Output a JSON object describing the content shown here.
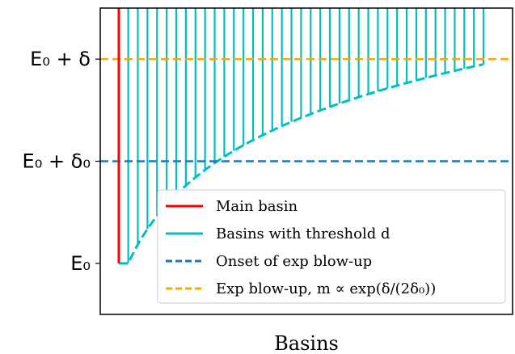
{
  "chart_data": {
    "type": "line",
    "title": "",
    "xlabel": "Basins",
    "ylabel": "",
    "ylim": [
      -0.5,
      2.5
    ],
    "grid": false,
    "legend_placement": "lower-right",
    "yticks": [
      {
        "value": 0,
        "label": "E₀"
      },
      {
        "value": 1,
        "label": "E₀ + δ₀"
      },
      {
        "value": 2,
        "label": "E₀ + δ"
      }
    ],
    "colors": {
      "main_basin": "#ff0000",
      "threshold_basins": "#00bfbf",
      "onset": "#1f77b4",
      "blowup": "#ffa500",
      "axes": "#000000"
    },
    "main_basin": {
      "x": 0.0,
      "y_bottom": 0.0,
      "y_top": 2.5
    },
    "threshold_basins": {
      "count": 38,
      "x_start": 0.025,
      "x_end": 0.97,
      "y_top": 2.5,
      "curve": "log-growth",
      "curve_end_y": 1.95
    },
    "hlines": [
      {
        "series": "onset",
        "y": 1,
        "style": "dashed"
      },
      {
        "series": "blowup",
        "y": 2,
        "style": "dashed"
      }
    ],
    "legend": [
      {
        "series": "main_basin",
        "label": "Main basin",
        "style": "solid"
      },
      {
        "series": "threshold_basins",
        "label": "Basins with threshold d",
        "style": "solid"
      },
      {
        "series": "onset",
        "label": "Onset of exp blow-up",
        "style": "dashed"
      },
      {
        "series": "blowup",
        "label": "Exp blow-up, m ∝ exp(δ/(2δ₀))",
        "style": "dashed"
      }
    ]
  }
}
